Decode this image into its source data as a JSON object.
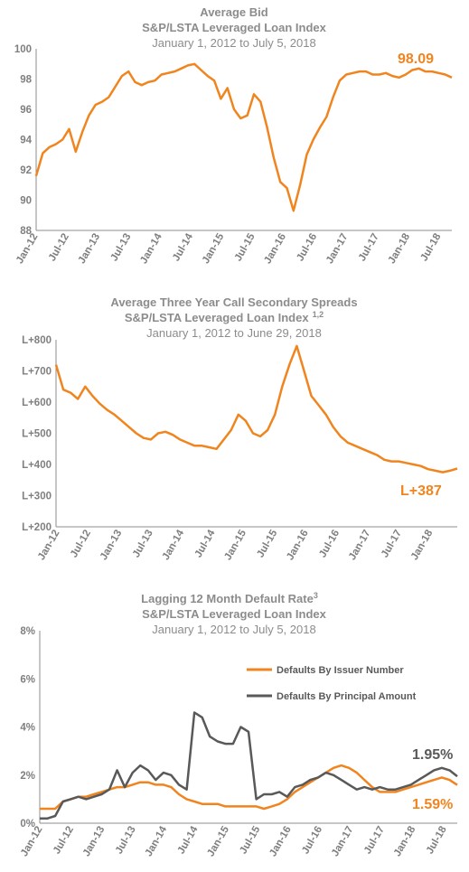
{
  "chart_data": [
    {
      "type": "line",
      "title": "Average Bid",
      "subtitle_line1": "S&P/LSTA Leveraged Loan Index",
      "subtitle_line2": "January 1, 2012 to July 5, 2018",
      "ylim": [
        88,
        100
      ],
      "yticks": [
        "88",
        "90",
        "92",
        "94",
        "96",
        "98",
        "100"
      ],
      "xticks": [
        "Jan-12",
        "Jul-12",
        "Jan-13",
        "Jul-13",
        "Jan-14",
        "Jul-14",
        "Jan-15",
        "Jul-15",
        "Jan-16",
        "Jul-16",
        "Jan-17",
        "Jul-17",
        "Jan-18",
        "Jul-18"
      ],
      "annotation": "98.09",
      "color": "#f0851f",
      "series": [
        {
          "values": [
            91.6,
            93.1,
            93.5,
            93.7,
            94.0,
            94.7,
            93.2,
            94.5,
            95.6,
            96.3,
            96.5,
            96.8,
            97.5,
            98.2,
            98.5,
            97.8,
            97.6,
            97.8,
            97.9,
            98.3,
            98.4,
            98.5,
            98.7,
            98.9,
            99.0,
            98.6,
            98.2,
            97.9,
            96.7,
            97.4,
            96.0,
            95.4,
            95.6,
            97.0,
            96.5,
            94.8,
            92.8,
            91.2,
            90.8,
            89.3,
            91.0,
            93.0,
            94.0,
            94.8,
            95.5,
            96.8,
            97.9,
            98.3,
            98.4,
            98.5,
            98.5,
            98.3,
            98.3,
            98.4,
            98.2,
            98.1,
            98.3,
            98.6,
            98.7,
            98.5,
            98.5,
            98.4,
            98.3,
            98.1
          ]
        }
      ]
    },
    {
      "type": "line",
      "title": "Average Three Year Call Secondary Spreads",
      "subtitle_line1": "S&P/LSTA Leveraged Loan Index",
      "subtitle_sup": "1,2",
      "subtitle_line2": "January 1, 2012 to June 29, 2018",
      "ylim": [
        200,
        800
      ],
      "yticks": [
        "L+200",
        "L+300",
        "L+400",
        "L+500",
        "L+600",
        "L+700",
        "L+800"
      ],
      "xticks": [
        "Jan-12",
        "Jul-12",
        "Jan-13",
        "Jul-13",
        "Jan-14",
        "Jul-14",
        "Jan-15",
        "Jul-15",
        "Jan-16",
        "Jul-16",
        "Jan-17",
        "Jul-17",
        "Jan-18"
      ],
      "annotation": "L+387",
      "color": "#f0851f",
      "series": [
        {
          "values": [
            720,
            640,
            630,
            610,
            650,
            620,
            595,
            575,
            560,
            540,
            520,
            500,
            485,
            480,
            500,
            505,
            495,
            480,
            470,
            460,
            460,
            455,
            450,
            480,
            510,
            560,
            540,
            500,
            490,
            510,
            560,
            650,
            720,
            780,
            700,
            620,
            590,
            560,
            520,
            490,
            470,
            460,
            450,
            440,
            430,
            415,
            410,
            410,
            405,
            400,
            395,
            385,
            380,
            375,
            380,
            387
          ]
        }
      ]
    },
    {
      "type": "line",
      "title": "Lagging 12 Month Default Rate",
      "title_sup": "3",
      "subtitle_line1": "S&P/LSTA Leveraged Loan Index",
      "subtitle_line2": "January 1, 2012 to July 5, 2018",
      "ylim": [
        0,
        8
      ],
      "yticks": [
        "0%",
        "2%",
        "4%",
        "6%",
        "8%"
      ],
      "xticks": [
        "Jan-12",
        "Jul-12",
        "Jan-13",
        "Jul-13",
        "Jan-14",
        "Jul-14",
        "Jan-15",
        "Jul-15",
        "Jan-16",
        "Jul-16",
        "Jan-17",
        "Jul-17",
        "Jan-18",
        "Jul-18"
      ],
      "annotations": [
        "1.95%",
        "1.59%"
      ],
      "series": [
        {
          "name": "Defaults By Issuer Number",
          "color": "#f0851f",
          "values": [
            0.6,
            0.6,
            0.6,
            0.9,
            1.0,
            1.1,
            1.1,
            1.2,
            1.3,
            1.4,
            1.5,
            1.5,
            1.6,
            1.7,
            1.7,
            1.6,
            1.6,
            1.5,
            1.2,
            1.0,
            0.9,
            0.8,
            0.8,
            0.8,
            0.7,
            0.7,
            0.7,
            0.7,
            0.7,
            0.6,
            0.7,
            0.8,
            1.0,
            1.3,
            1.5,
            1.7,
            1.9,
            2.1,
            2.3,
            2.4,
            2.3,
            2.1,
            1.8,
            1.5,
            1.3,
            1.3,
            1.3,
            1.4,
            1.5,
            1.6,
            1.7,
            1.8,
            1.9,
            1.8,
            1.59
          ]
        },
        {
          "name": "Defaults By Principal Amount",
          "color": "#595959",
          "values": [
            0.2,
            0.2,
            0.3,
            0.9,
            1.0,
            1.1,
            1.0,
            1.1,
            1.2,
            1.4,
            2.2,
            1.5,
            2.1,
            2.4,
            2.2,
            1.8,
            2.1,
            2.0,
            1.6,
            1.4,
            4.6,
            4.4,
            3.6,
            3.4,
            3.3,
            3.3,
            4.0,
            3.8,
            1.0,
            1.2,
            1.2,
            1.3,
            1.1,
            1.5,
            1.6,
            1.8,
            1.9,
            2.1,
            2.0,
            1.8,
            1.6,
            1.4,
            1.5,
            1.4,
            1.5,
            1.4,
            1.4,
            1.5,
            1.6,
            1.8,
            2.0,
            2.2,
            2.3,
            2.2,
            1.95
          ]
        }
      ]
    }
  ]
}
